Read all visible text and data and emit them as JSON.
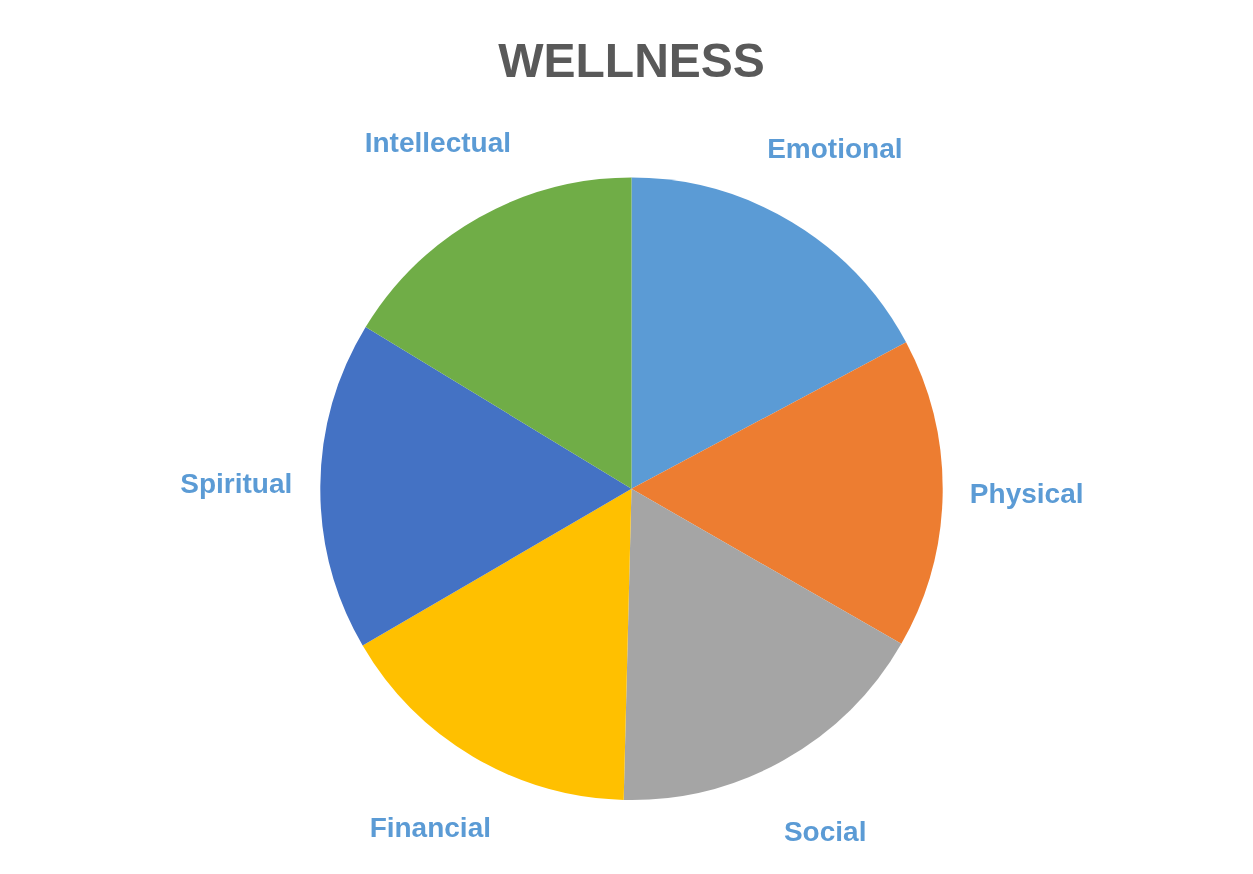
{
  "chart_data": {
    "type": "pie",
    "title": "WELLNESS",
    "categories": [
      "Emotional",
      "Physical",
      "Social",
      "Financial",
      "Spiritual",
      "Intellectual"
    ],
    "values": [
      17.2,
      16.1,
      17.1,
      16.2,
      17.1,
      16.3
    ],
    "colors": [
      "#5b9bd5",
      "#ed7d31",
      "#a5a5a5",
      "#ffc000",
      "#4472c4",
      "#70ad47"
    ],
    "legend": false
  }
}
